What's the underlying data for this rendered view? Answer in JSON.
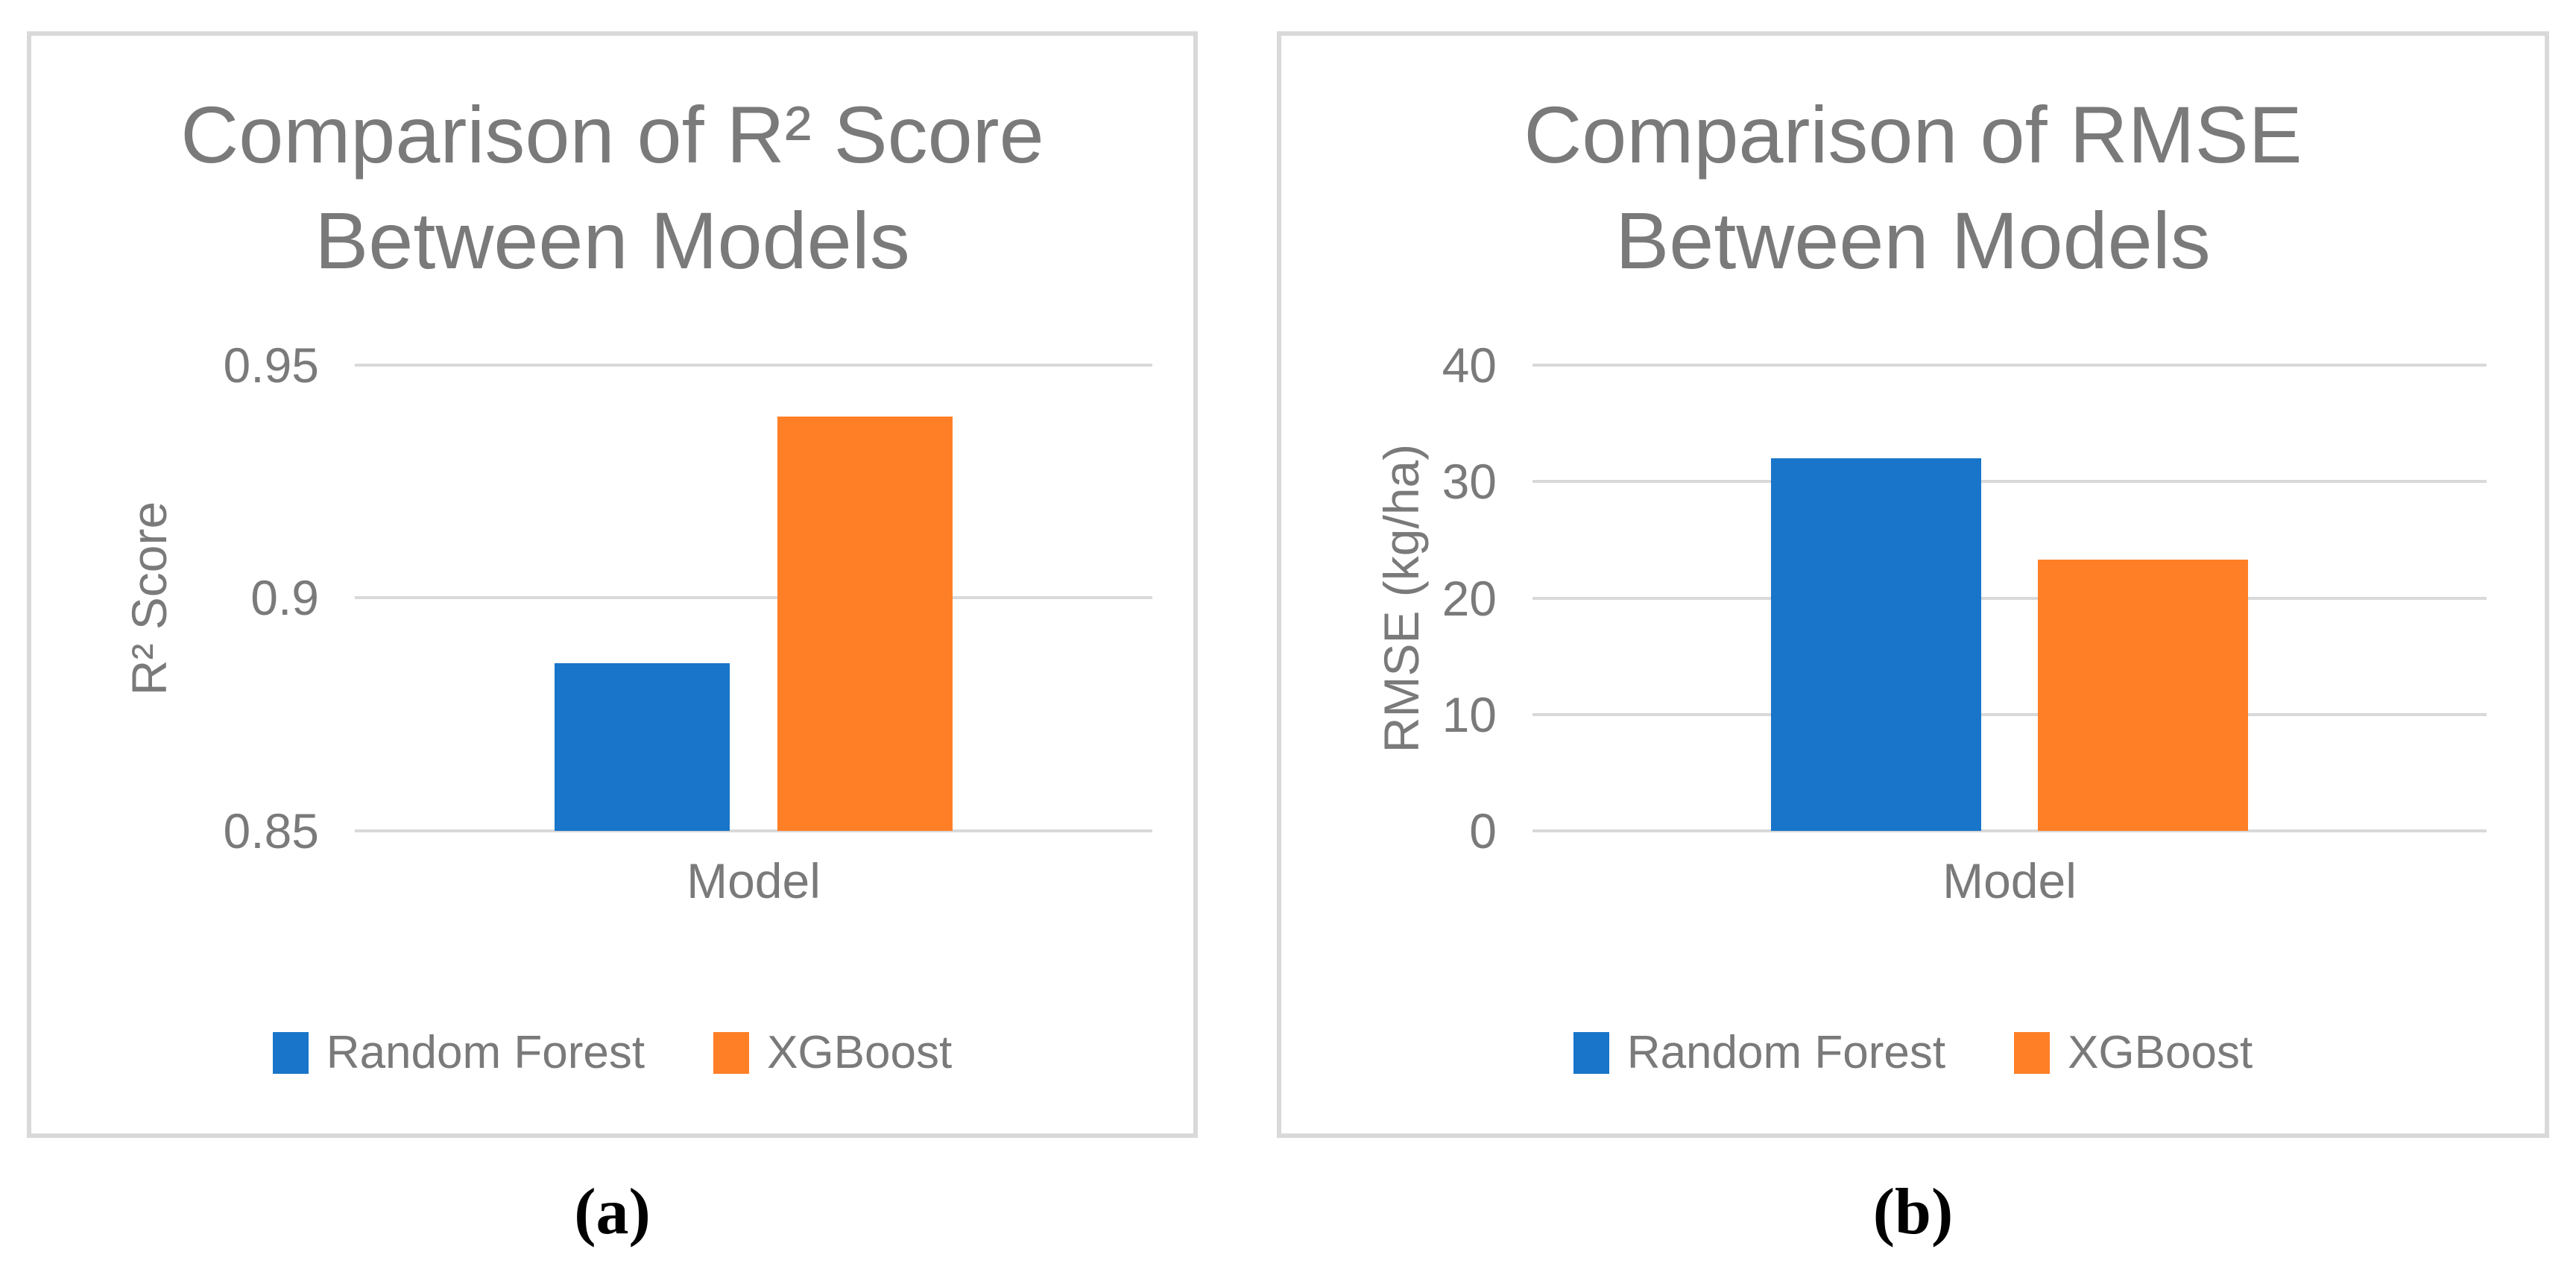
{
  "theme": {
    "background": "#ffffff",
    "text_color": "#7a7a7a",
    "gridline_color": "#d9d9d9",
    "panel_border_color": "#d9d9d9",
    "caption_color": "#000000",
    "series_blue": "#1875C9",
    "series_orange": "#FF7F27"
  },
  "chart_data": [
    {
      "type": "bar",
      "panel_label": "(a)",
      "title": "Comparison of R² Score Between Models",
      "title_lines": [
        "Comparison of R² Score",
        "Between Models"
      ],
      "xlabel": "Model",
      "ylabel": "R² Score",
      "categories": [
        "Model"
      ],
      "ylim": [
        0.85,
        0.95
      ],
      "yticks": [
        0.85,
        0.9,
        0.95
      ],
      "ytick_labels": [
        "0.85",
        "0.9",
        "0.95"
      ],
      "grid": true,
      "legend_position": "bottom",
      "series": [
        {
          "name": "Random Forest",
          "color": "#1875C9",
          "values": [
            0.886
          ]
        },
        {
          "name": "XGBoost",
          "color": "#FF7F27",
          "values": [
            0.939
          ]
        }
      ]
    },
    {
      "type": "bar",
      "panel_label": "(b)",
      "title": "Comparison of RMSE Between Models",
      "title_lines": [
        "Comparison of RMSE",
        "Between Models"
      ],
      "xlabel": "Model",
      "ylabel": "RMSE (kg/ha)",
      "categories": [
        "Model"
      ],
      "ylim": [
        0,
        40
      ],
      "yticks": [
        0,
        10,
        20,
        30,
        40
      ],
      "ytick_labels": [
        "0",
        "10",
        "20",
        "30",
        "40"
      ],
      "grid": true,
      "legend_position": "bottom",
      "series": [
        {
          "name": "Random Forest",
          "color": "#1875C9",
          "values": [
            32
          ]
        },
        {
          "name": "XGBoost",
          "color": "#FF7F27",
          "values": [
            23.3
          ]
        }
      ]
    }
  ]
}
